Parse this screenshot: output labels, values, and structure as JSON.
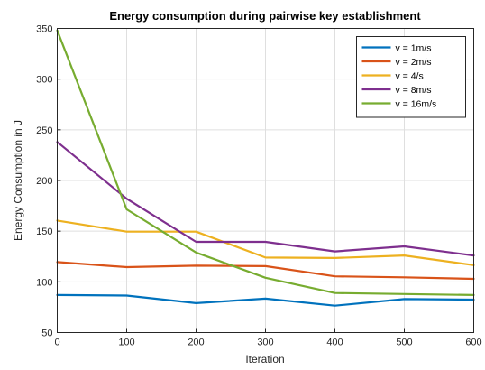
{
  "chart_data": {
    "type": "line",
    "title": "Energy consumption during pairwise key establishment",
    "xlabel": "Iteration",
    "ylabel": "Energy Consumption in J",
    "xlim": [
      0,
      600
    ],
    "ylim": [
      50,
      350
    ],
    "xticks": [
      0,
      100,
      200,
      300,
      400,
      500,
      600
    ],
    "yticks": [
      50,
      100,
      150,
      200,
      250,
      300,
      350
    ],
    "grid": true,
    "legend_position": "top-right",
    "x": [
      0,
      100,
      200,
      300,
      400,
      500,
      600
    ],
    "series": [
      {
        "name": "v = 1m/s",
        "color": "#0072BD",
        "values": [
          87,
          86.5,
          79,
          83.5,
          76.5,
          83,
          82.5
        ]
      },
      {
        "name": "v = 2m/s",
        "color": "#D95319",
        "values": [
          119.5,
          114.5,
          116,
          115.5,
          105.5,
          104.5,
          103
        ]
      },
      {
        "name": "v = 4/s",
        "color": "#EDB120",
        "values": [
          160.5,
          149.5,
          149.5,
          124,
          123.5,
          126,
          116.5
        ]
      },
      {
        "name": "v = 8m/s",
        "color": "#7E2F8E",
        "values": [
          238,
          182,
          139.5,
          139.5,
          130,
          135,
          126
        ]
      },
      {
        "name": "v = 16m/s",
        "color": "#77AC30",
        "values": [
          348,
          171.5,
          129,
          104,
          89,
          88,
          87
        ]
      }
    ]
  }
}
